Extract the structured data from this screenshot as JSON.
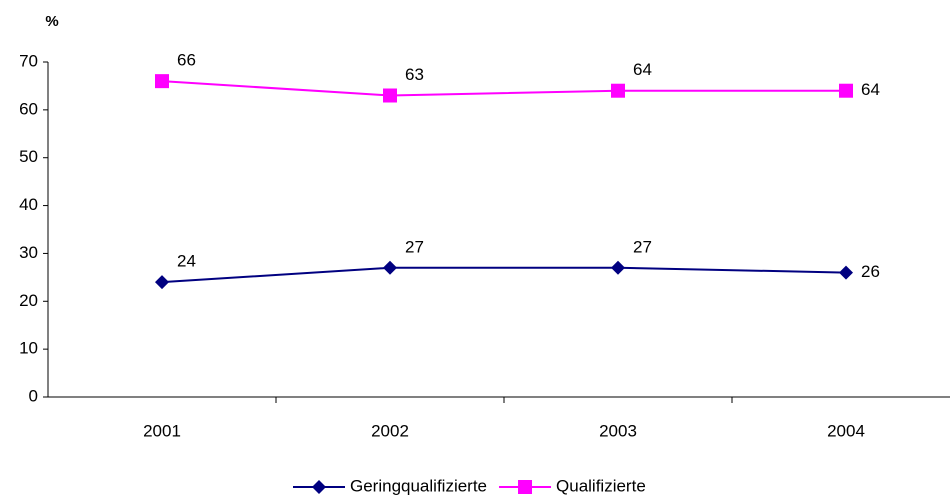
{
  "chart_data": {
    "type": "line",
    "y_unit_label": "%",
    "categories": [
      "2001",
      "2002",
      "2003",
      "2004"
    ],
    "series": [
      {
        "name": "Geringqualifizierte",
        "color": "#000080",
        "marker": "diamond",
        "values": [
          24,
          27,
          27,
          26
        ]
      },
      {
        "name": "Qualifizierte",
        "color": "#ff00ff",
        "marker": "square",
        "values": [
          66,
          63,
          64,
          64
        ]
      }
    ],
    "ylim": [
      0,
      70
    ],
    "yticks": [
      0,
      10,
      20,
      30,
      40,
      50,
      60,
      70
    ],
    "legend": "bottom"
  }
}
